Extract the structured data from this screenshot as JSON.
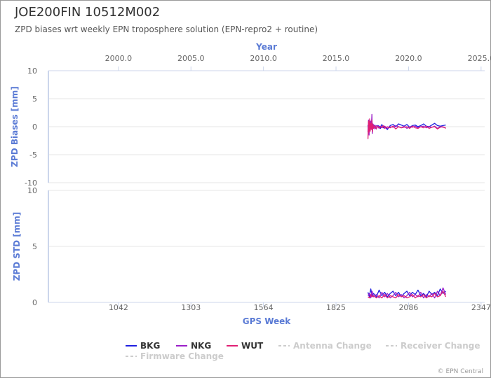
{
  "header": {
    "title": "JOE200FIN 10512M002",
    "subtitle": "ZPD biases wrt weekly EPN troposphere solution (EPN-repro2 + routine)"
  },
  "credits": "© EPN Central",
  "colors": {
    "axis_title": "#5b7bd5",
    "grid": "#e6e6e6",
    "axis_line": "#ccd6eb",
    "BKG": "#1f1fe0",
    "NKG": "#9b1fc9",
    "WUT": "#e01f74",
    "legend_disabled": "#cccccc"
  },
  "legend": [
    {
      "name": "BKG",
      "color": "#1f1fe0",
      "enabled": true
    },
    {
      "name": "NKG",
      "color": "#9b1fc9",
      "enabled": true
    },
    {
      "name": "WUT",
      "color": "#e01f74",
      "enabled": true
    },
    {
      "name": "Antenna Change",
      "color": "#cccccc",
      "enabled": false
    },
    {
      "name": "Receiver Change",
      "color": "#cccccc",
      "enabled": false
    },
    {
      "name": "Firmware Change",
      "color": "#cccccc",
      "enabled": false
    }
  ],
  "chart_data": [
    {
      "type": "line",
      "panel": "biases",
      "title": "JOE200FIN 10512M002",
      "subtitle": "ZPD biases wrt weekly EPN troposphere solution (EPN-repro2 + routine)",
      "ylabel": "ZPD Biases [mm]",
      "xlabel_top": "Year",
      "ylim": [
        -10,
        10
      ],
      "yticks": [
        10,
        5,
        0,
        -5,
        -10
      ],
      "xlim": [
        790,
        2360
      ],
      "year_ticks": [
        {
          "label": "2000.0",
          "gps_week": 1042
        },
        {
          "label": "2005.0",
          "gps_week": 1303
        },
        {
          "label": "2010.0",
          "gps_week": 1564
        },
        {
          "label": "2015.0",
          "gps_week": 1825
        },
        {
          "label": "2020.0",
          "gps_week": 2086
        },
        {
          "label": "2025.0",
          "gps_week": 2347
        }
      ],
      "grid": true,
      "series": [
        {
          "name": "BKG",
          "x": [
            1940,
            1942,
            1944,
            1946,
            1948,
            1950,
            1952,
            1954,
            1956,
            1958,
            1960,
            1965,
            1970,
            1975,
            1980,
            1985,
            1990,
            1995,
            2000,
            2010,
            2020,
            2030,
            2040,
            2050,
            2060,
            2070,
            2080,
            2090,
            2100,
            2110,
            2120,
            2130,
            2140,
            2150,
            2160,
            2170,
            2180,
            2190,
            2200,
            2210,
            2220
          ],
          "y": [
            0.3,
            -0.8,
            1.0,
            -0.5,
            0.6,
            0.2,
            -0.4,
            1.6,
            -0.6,
            0.4,
            -0.2,
            0.3,
            -0.4,
            0.2,
            0.1,
            -0.3,
            0.4,
            -0.2,
            0.0,
            -0.5,
            0.2,
            0.4,
            0.0,
            0.5,
            0.3,
            0.1,
            0.4,
            -0.1,
            0.2,
            0.3,
            0.0,
            0.2,
            0.5,
            0.1,
            0.0,
            0.3,
            0.6,
            0.2,
            0.1,
            0.2,
            0.3
          ]
        },
        {
          "name": "NKG",
          "x": [
            1940,
            1942,
            1944,
            1946,
            1948,
            1950,
            1952,
            1954,
            1956,
            1958,
            1960,
            1965,
            1970,
            1975,
            1980,
            1985,
            1990,
            1995,
            2000,
            2010,
            2020,
            2030,
            2040,
            2050,
            2060,
            2070,
            2080,
            2090,
            2100,
            2110,
            2120,
            2130,
            2140,
            2150,
            2160,
            2170,
            2180,
            2190,
            2200,
            2210,
            2220
          ],
          "y": [
            -1.0,
            1.2,
            -1.5,
            0.8,
            -0.6,
            1.0,
            -0.3,
            2.2,
            -1.2,
            0.5,
            0.3,
            -0.4,
            0.2,
            0.0,
            -0.3,
            0.1,
            -0.2,
            0.0,
            0.1,
            -0.3,
            0.0,
            -0.1,
            0.2,
            0.0,
            -0.2,
            0.1,
            -0.3,
            0.0,
            -0.1,
            0.1,
            -0.2,
            0.0,
            0.1,
            -0.2,
            0.0,
            -0.1,
            0.1,
            -0.3,
            0.0,
            -0.1,
            -0.2
          ]
        },
        {
          "name": "WUT",
          "x": [
            1940,
            1942,
            1944,
            1946,
            1948,
            1950,
            1952,
            1954,
            1956,
            1958,
            1960,
            1965,
            1970,
            1975,
            1980,
            1985,
            1990,
            1995,
            2000,
            2010,
            2020,
            2030,
            2040,
            2050,
            2060,
            2070,
            2080,
            2090,
            2100,
            2110,
            2120,
            2130,
            2140,
            2150,
            2160,
            2170,
            2180,
            2190,
            2200,
            2210,
            2220
          ],
          "y": [
            -2.2,
            1.0,
            -1.0,
            1.4,
            -0.8,
            0.6,
            -0.5,
            1.2,
            -0.9,
            0.4,
            -0.3,
            0.2,
            -0.4,
            0.1,
            -0.2,
            0.0,
            -0.1,
            0.2,
            -0.3,
            0.0,
            -0.2,
            0.1,
            -0.4,
            0.0,
            -0.2,
            -0.1,
            0.0,
            -0.3,
            0.1,
            -0.2,
            -0.3,
            0.0,
            -0.2,
            0.1,
            -0.3,
            -0.1,
            0.0,
            -0.4,
            -0.1,
            0.0,
            -0.3
          ]
        }
      ]
    },
    {
      "type": "line",
      "panel": "std",
      "ylabel": "ZPD STD [mm]",
      "xlabel": "GPS Week",
      "ylim": [
        0,
        10
      ],
      "yticks": [
        10,
        5,
        0
      ],
      "xlim": [
        790,
        2360
      ],
      "xticks": [
        1042,
        1303,
        1564,
        1825,
        2086,
        2347
      ],
      "grid": true,
      "series": [
        {
          "name": "BKG",
          "x": [
            1940,
            1945,
            1950,
            1955,
            1960,
            1970,
            1980,
            1990,
            2000,
            2010,
            2020,
            2030,
            2040,
            2050,
            2060,
            2070,
            2080,
            2090,
            2100,
            2110,
            2120,
            2130,
            2140,
            2150,
            2160,
            2170,
            2180,
            2190,
            2200,
            2210,
            2220
          ],
          "y": [
            0.9,
            0.5,
            1.2,
            0.6,
            0.8,
            0.5,
            1.1,
            0.6,
            0.9,
            0.5,
            0.8,
            1.0,
            0.6,
            0.9,
            0.5,
            0.8,
            1.0,
            0.6,
            0.9,
            0.7,
            1.1,
            0.6,
            0.8,
            0.5,
            1.0,
            0.7,
            0.9,
            0.6,
            1.2,
            0.8,
            1.0
          ]
        },
        {
          "name": "NKG",
          "x": [
            1940,
            1945,
            1950,
            1955,
            1960,
            1970,
            1980,
            1990,
            2000,
            2010,
            2020,
            2030,
            2040,
            2050,
            2060,
            2070,
            2080,
            2090,
            2100,
            2110,
            2120,
            2130,
            2140,
            2150,
            2160,
            2170,
            2180,
            2190,
            2200,
            2210,
            2220
          ],
          "y": [
            0.6,
            0.8,
            0.4,
            1.0,
            0.5,
            0.7,
            0.4,
            0.9,
            0.5,
            0.8,
            0.4,
            0.6,
            0.9,
            0.5,
            0.7,
            0.4,
            0.6,
            0.9,
            0.5,
            0.7,
            0.5,
            0.9,
            0.4,
            0.7,
            0.5,
            0.8,
            0.4,
            1.0,
            0.6,
            1.3,
            0.7
          ]
        },
        {
          "name": "WUT",
          "x": [
            1940,
            1945,
            1950,
            1955,
            1960,
            1970,
            1980,
            1990,
            2000,
            2010,
            2020,
            2030,
            2040,
            2050,
            2060,
            2070,
            2080,
            2090,
            2100,
            2110,
            2120,
            2130,
            2140,
            2150,
            2160,
            2170,
            2180,
            2190,
            2200,
            2210,
            2220
          ],
          "y": [
            0.5,
            0.4,
            0.7,
            0.5,
            0.6,
            0.4,
            0.6,
            0.4,
            0.7,
            0.4,
            0.6,
            0.5,
            0.4,
            0.7,
            0.5,
            0.6,
            0.4,
            0.5,
            0.7,
            0.4,
            0.6,
            0.5,
            0.7,
            0.4,
            0.6,
            0.5,
            0.8,
            0.5,
            0.6,
            1.0,
            0.5
          ]
        }
      ]
    }
  ]
}
